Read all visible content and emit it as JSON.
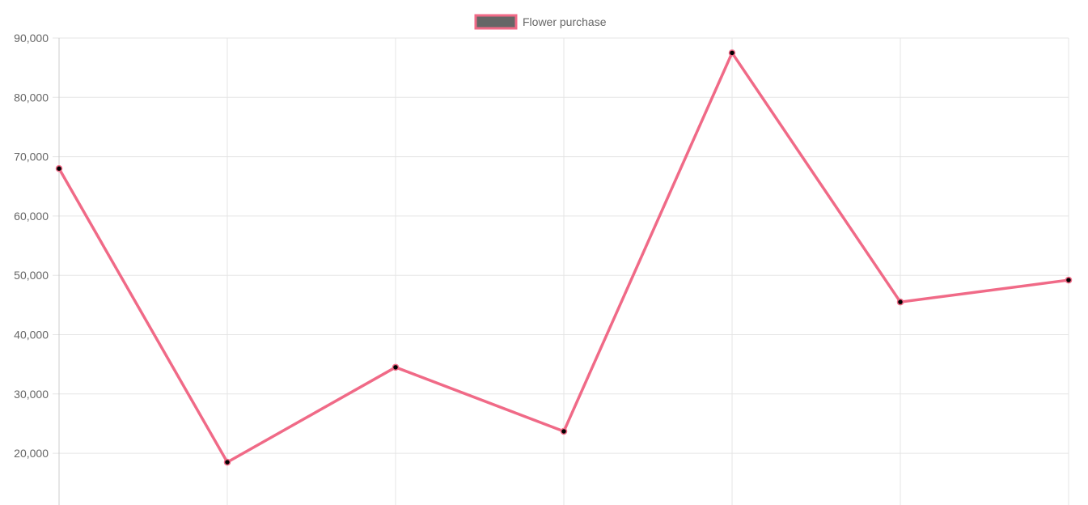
{
  "chart_data": {
    "type": "line",
    "x": [
      "",
      "",
      "",
      "",
      "",
      "",
      ""
    ],
    "series": [
      {
        "name": "Flower purchase",
        "values": [
          68000,
          18500,
          34500,
          23700,
          87500,
          45500,
          49200
        ]
      }
    ],
    "ylim": [
      12000,
      90000
    ],
    "yticks": [
      20000,
      30000,
      40000,
      50000,
      60000,
      70000,
      80000,
      90000
    ],
    "ytick_labels": [
      "20,000",
      "30,000",
      "40,000",
      "50,000",
      "60,000",
      "70,000",
      "80,000",
      "90,000"
    ],
    "grid": true,
    "legend": "top-center"
  },
  "colors": {
    "line": "#f06a87",
    "point_fill": "#000000",
    "legend_box_fill": "#666666"
  }
}
